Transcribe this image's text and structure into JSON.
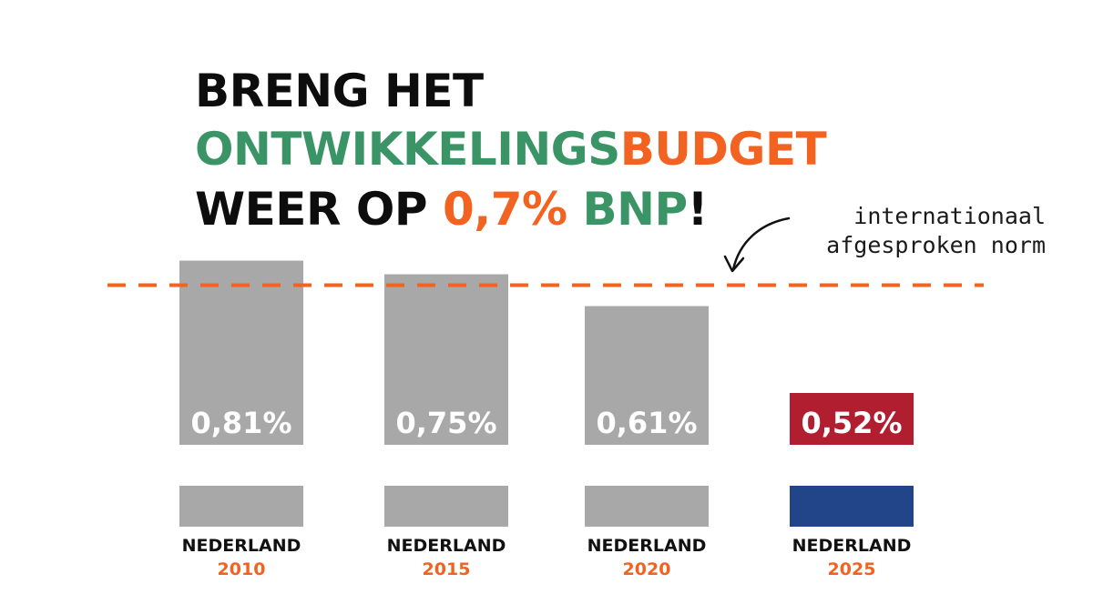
{
  "headline": {
    "line1": "BRENG HET",
    "line2_part1": "ONTWIKKELINGS",
    "line2_part2": "BUDGET",
    "line3_part1": "WEER OP ",
    "line3_part2": "0,7%",
    "line3_part3": " BNP",
    "line3_part4": "!"
  },
  "annotation": {
    "line1": "internationaal",
    "line2": "afgesproken norm"
  },
  "colors": {
    "bar_gray": "#a8a8a8",
    "highlight_red": "#b01e2f",
    "highlight_blue": "#22458a",
    "norm_line": "#f26322",
    "text_green": "#3a9466",
    "text_orange": "#f26322"
  },
  "chart_data": {
    "type": "bar",
    "categories": [
      "2010",
      "2015",
      "2020",
      "2025"
    ],
    "values": [
      0.81,
      0.75,
      0.61,
      0.52
    ],
    "value_labels": [
      "0,81%",
      "0,75%",
      "0,61%",
      "0,52%"
    ],
    "country_labels": [
      "NEDERLAND",
      "NEDERLAND",
      "NEDERLAND",
      "NEDERLAND"
    ],
    "year_labels": [
      "2010",
      "2015",
      "2020",
      "2025"
    ],
    "reference_line": {
      "value": 0.7
    },
    "highlight_index": 3,
    "title": "",
    "xlabel": "",
    "ylabel": "",
    "grid": false
  }
}
